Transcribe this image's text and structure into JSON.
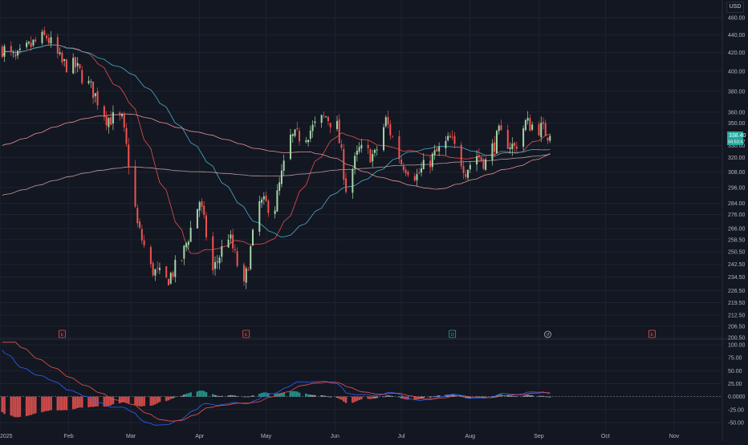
{
  "currency_label": "USD",
  "price_tag_last": "338.40",
  "price_tag_timer": "04:53:47",
  "colors": {
    "background": "#131722",
    "grid": "#1f2330",
    "up": "#26a69a",
    "down": "#ef5350",
    "wick_up": "#a5d6a7",
    "ma_fast": "#ef5350",
    "ma_mid": "#4db6d6",
    "ma_slow": "#ef9a9a",
    "ma_long": "#c1a3a3",
    "macd": "#ef5350",
    "signal": "#2962ff",
    "hist_pos": "#26a69a",
    "hist_neg": "#ef5350",
    "hist_neutral": "#b2b5be"
  },
  "event_markers": [
    {
      "label": "E",
      "date": "2025-01-29",
      "color": "#ef5350"
    },
    {
      "label": "E",
      "date": "2025-04-22",
      "color": "#ef5350"
    },
    {
      "label": "D",
      "date": "2025-07-24",
      "color": "#26a69a"
    },
    {
      "label": "↺",
      "date": "2025-09-05",
      "color": "#b2b5be"
    },
    {
      "label": "E",
      "date": "2025-10-22",
      "color": "#ef5350"
    }
  ],
  "chart_data": [
    {
      "type": "candlestick",
      "title": "",
      "y_ticks": [
        "460.00",
        "440.00",
        "420.00",
        "400.00",
        "380.00",
        "360.00",
        "350.00",
        "330.00",
        "320.00",
        "308.00",
        "296.00",
        "284.00",
        "276.00",
        "266.00",
        "258.50",
        "250.50",
        "242.50",
        "234.50",
        "226.50",
        "219.50",
        "212.50",
        "206.50",
        "200.50"
      ],
      "ylim": [
        200.5,
        460
      ],
      "y_scale": "log",
      "x_labels": [
        "2025",
        "Feb",
        "Mar",
        "Apr",
        "May",
        "Jun",
        "Jul",
        "Aug",
        "Sep",
        "Oct",
        "Nov"
      ],
      "x_range": [
        "2025-01-01",
        "2025-11-30"
      ],
      "last_close": 338.4,
      "anchor_closes": [
        [
          "2025-01-02",
          425
        ],
        [
          "2025-01-08",
          412
        ],
        [
          "2025-01-16",
          430
        ],
        [
          "2025-01-22",
          438
        ],
        [
          "2025-01-29",
          408
        ],
        [
          "2025-02-04",
          405
        ],
        [
          "2025-02-12",
          380
        ],
        [
          "2025-02-18",
          355
        ],
        [
          "2025-02-25",
          352
        ],
        [
          "2025-03-04",
          268
        ],
        [
          "2025-03-10",
          240
        ],
        [
          "2025-03-17",
          232
        ],
        [
          "2025-03-24",
          246
        ],
        [
          "2025-04-01",
          286
        ],
        [
          "2025-04-07",
          238
        ],
        [
          "2025-04-14",
          262
        ],
        [
          "2025-04-21",
          228
        ],
        [
          "2025-04-28",
          284
        ],
        [
          "2025-05-05",
          282
        ],
        [
          "2025-05-12",
          336
        ],
        [
          "2025-05-19",
          340
        ],
        [
          "2025-05-28",
          356
        ],
        [
          "2025-06-02",
          346
        ],
        [
          "2025-06-06",
          296
        ],
        [
          "2025-06-12",
          326
        ],
        [
          "2025-06-19",
          321
        ],
        [
          "2025-06-24",
          352
        ],
        [
          "2025-07-01",
          316
        ],
        [
          "2025-07-08",
          305
        ],
        [
          "2025-07-16",
          322
        ],
        [
          "2025-07-23",
          335
        ],
        [
          "2025-07-30",
          310
        ],
        [
          "2025-08-04",
          322
        ],
        [
          "2025-08-08",
          316
        ],
        [
          "2025-08-14",
          340
        ],
        [
          "2025-08-21",
          328
        ],
        [
          "2025-08-26",
          350
        ],
        [
          "2025-09-02",
          345
        ],
        [
          "2025-09-06",
          338.4
        ]
      ],
      "moving_averages": [
        {
          "name": "",
          "period": 20,
          "color": "#ef5350"
        },
        {
          "name": "",
          "period": 50,
          "color": "#4db6d6"
        },
        {
          "name": "",
          "period": 100,
          "color": "#ef9a9a"
        },
        {
          "name": "",
          "period": 200,
          "color": "#c1a3a3"
        }
      ],
      "grid": true
    },
    {
      "type": "macd",
      "y_ticks": [
        "100.00",
        "75.00",
        "50.00",
        "25.00",
        "0.0000",
        "-25.00",
        "-50.00"
      ],
      "ylim": [
        -55,
        105
      ],
      "zero_line": true,
      "grid": true
    }
  ]
}
